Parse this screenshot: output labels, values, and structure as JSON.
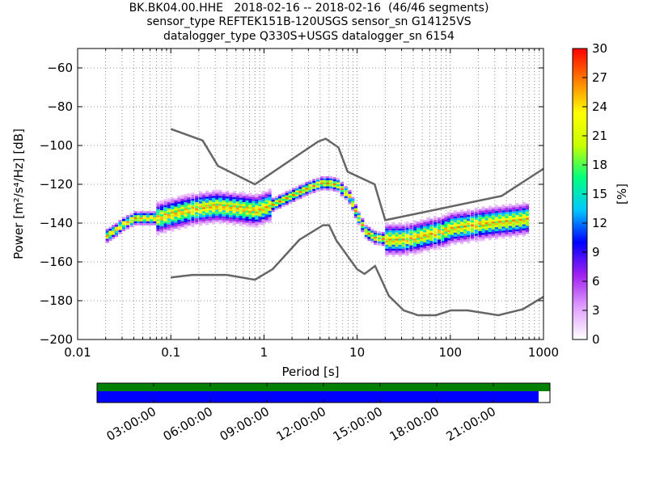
{
  "title_lines": [
    "BK.BK04.00.HHE   2018-02-16 -- 2018-02-16  (46/46 segments)",
    "sensor_type REFTEK151B-120USGS sensor_sn G14125VS",
    "datalogger_type Q330S+USGS datalogger_sn 6154"
  ],
  "chart_data": {
    "type": "heatmap",
    "xlabel": "Period [s]",
    "ylabel": "Power [m²/s⁴/Hz] [dB]",
    "x_scale": "log",
    "xlim": [
      0.01,
      1000
    ],
    "ylim": [
      -200,
      -50
    ],
    "x_ticks": [
      0.01,
      0.1,
      1,
      10,
      100,
      1000
    ],
    "x_tick_labels": [
      "0.01",
      "0.1",
      "1",
      "10",
      "100",
      "1000"
    ],
    "y_ticks": [
      -200,
      -180,
      -160,
      -140,
      -120,
      -100,
      -80,
      -60
    ],
    "y_tick_labels": [
      "−200",
      "−180",
      "−160",
      "−140",
      "−120",
      "−100",
      "−80",
      "−60"
    ],
    "grid": "dotted vertical and horizontal",
    "colorbar": {
      "label": "[%]",
      "range": [
        0,
        30
      ],
      "ticks": [
        0,
        3,
        6,
        9,
        12,
        15,
        18,
        21,
        24,
        27,
        30
      ],
      "colormap": [
        "#ffffff",
        "#e0a0ff",
        "#a020f0",
        "#0000ff",
        "#00c8ff",
        "#00ff80",
        "#c8ff00",
        "#ffff00",
        "#ff8000",
        "#ff0000"
      ]
    },
    "series": [
      {
        "role": "new-high-noise-model",
        "x": [
          0.1,
          0.22,
          0.32,
          0.8,
          3.8,
          4.6,
          6.3,
          7.9,
          15.4,
          20,
          354.8,
          1000
        ],
        "y": [
          -91.5,
          -97.4,
          -110.5,
          -120,
          -98,
          -96.5,
          -101,
          -113.5,
          -120,
          -138.5,
          -126,
          -112
        ]
      },
      {
        "role": "new-low-noise-model",
        "x": [
          0.1,
          0.17,
          0.4,
          0.8,
          1.24,
          2.4,
          4.3,
          5,
          6,
          10,
          12,
          15.6,
          21.9,
          31.6,
          45,
          70,
          101,
          154,
          328,
          600,
          1000
        ],
        "y": [
          -168,
          -166.7,
          -166.7,
          -169.2,
          -163.7,
          -148.6,
          -141.1,
          -141.1,
          -149,
          -163.8,
          -166.2,
          -162.1,
          -177.5,
          -185,
          -187.5,
          -187.5,
          -185,
          -185,
          -187.5,
          -184.4,
          -178
        ]
      }
    ],
    "density": {
      "x": [
        0.02,
        0.025,
        0.03,
        0.04,
        0.05,
        0.07,
        0.1,
        0.15,
        0.2,
        0.3,
        0.5,
        0.8,
        1.2,
        2,
        3,
        4,
        5,
        6,
        8,
        10,
        12,
        15,
        20,
        30,
        40,
        60,
        80,
        100,
        150,
        200,
        300,
        500,
        700
      ],
      "mode_y": [
        -146,
        -143,
        -140,
        -137,
        -137,
        -137,
        -135,
        -133,
        -132,
        -131,
        -132,
        -133,
        -130,
        -125,
        -121,
        -119,
        -119,
        -120,
        -126,
        -137,
        -144,
        -147,
        -148,
        -148,
        -147,
        -145,
        -144,
        -142,
        -141,
        -140,
        -139,
        -138,
        -137
      ]
    },
    "coverage": {
      "time_ticks": [
        "03:00:00",
        "06:00:00",
        "09:00:00",
        "12:00:00",
        "15:00:00",
        "18:00:00",
        "21:00:00"
      ],
      "data_fraction": 0.975,
      "data_color": "#0000ff",
      "gap_color": "#ffffff",
      "top_strip_color": "#008000"
    }
  }
}
